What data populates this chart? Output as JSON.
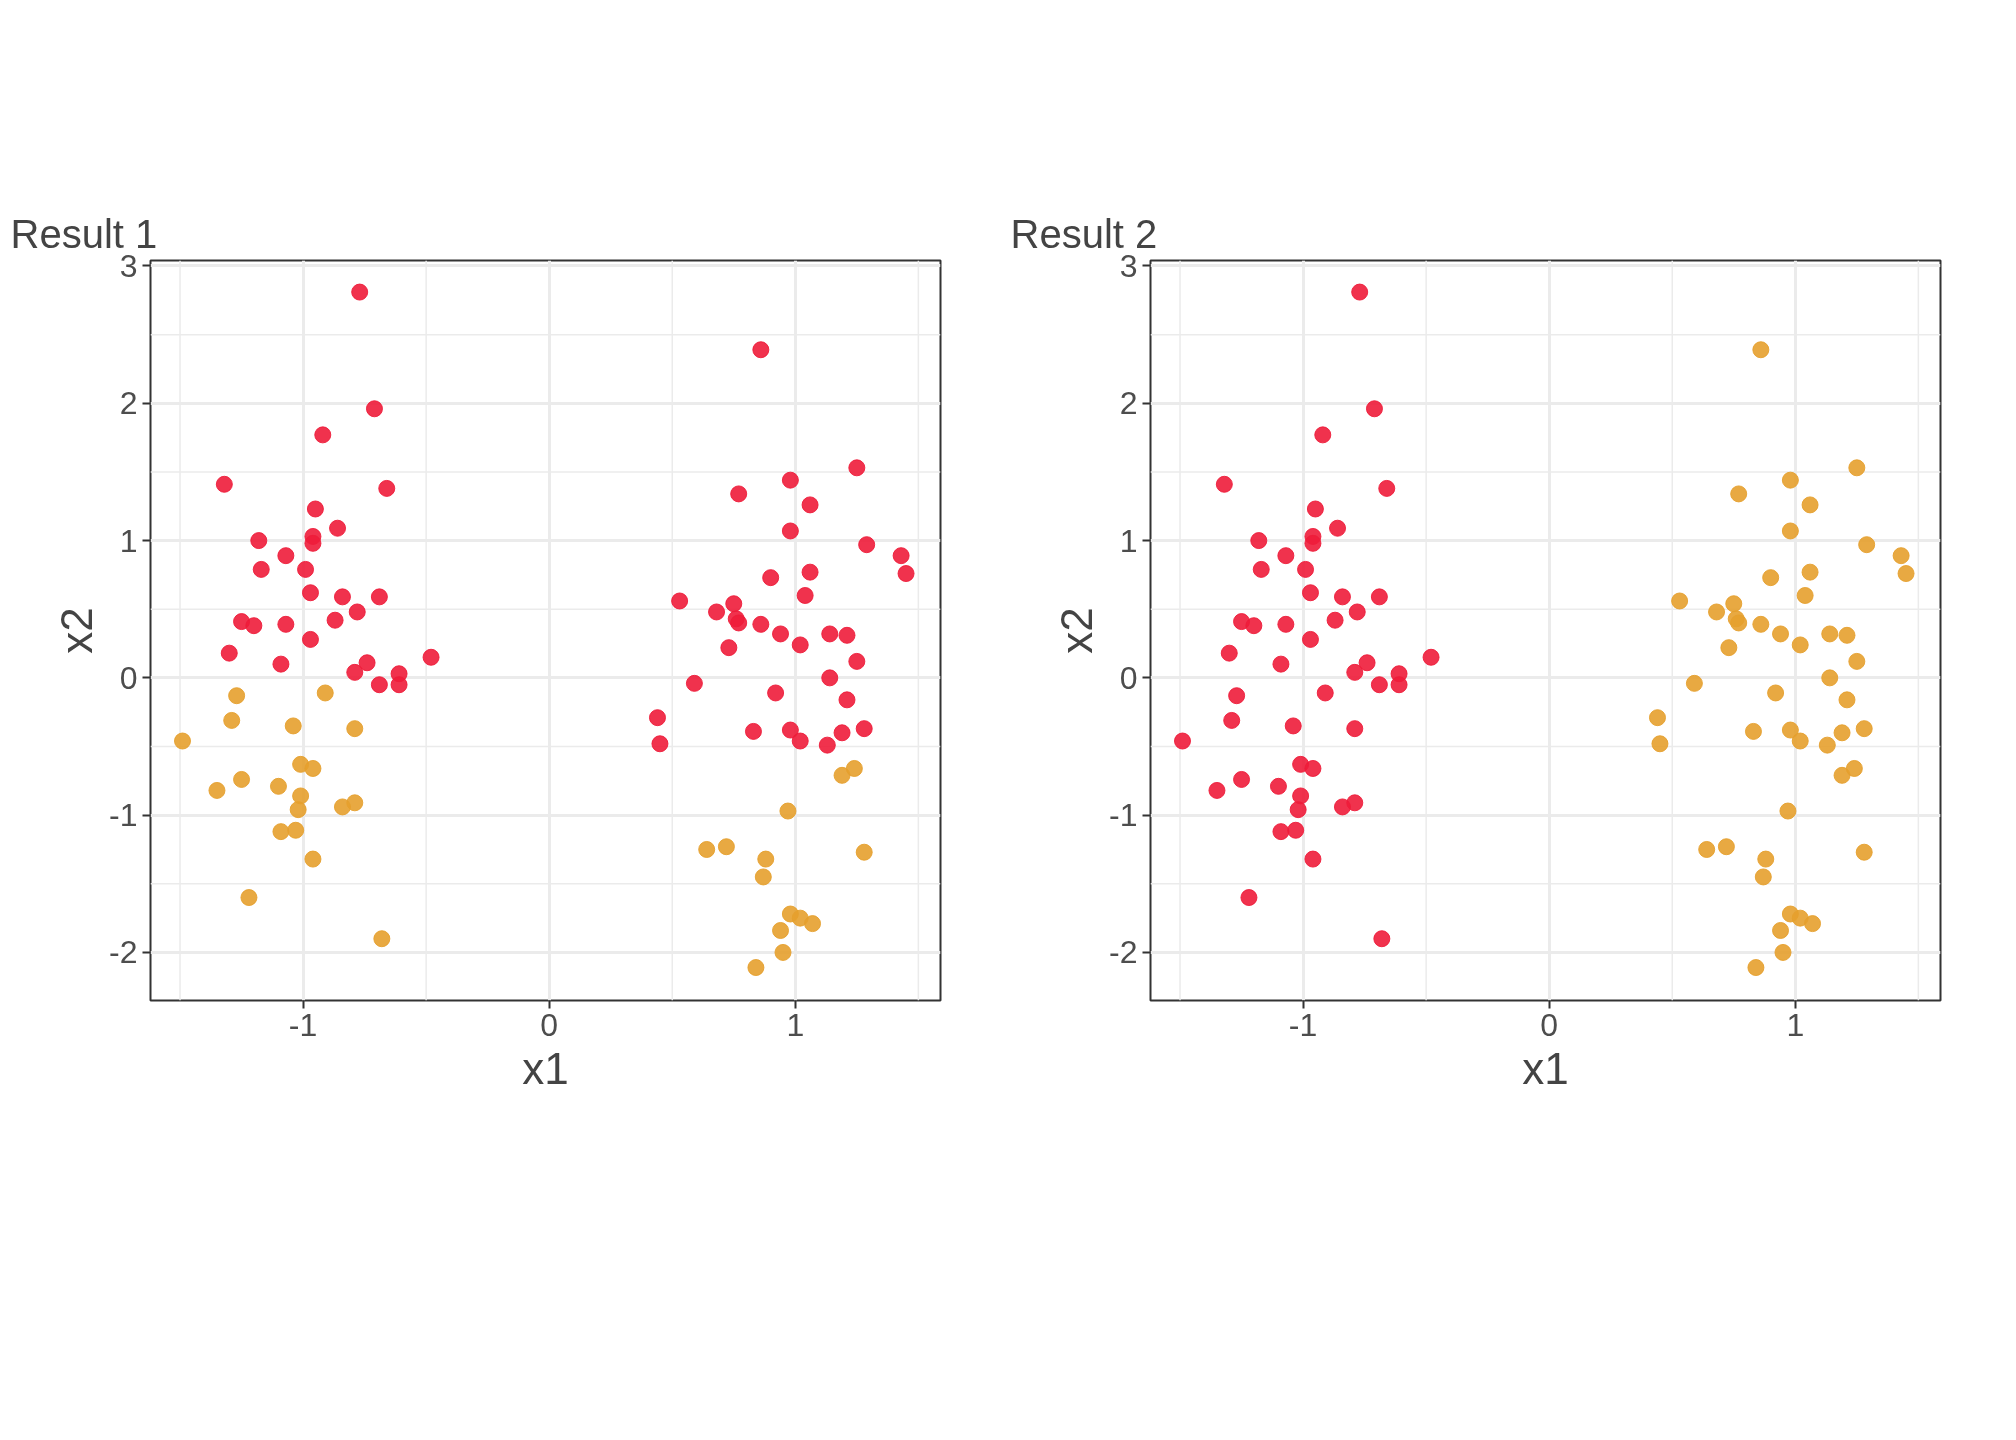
{
  "chart_data": [
    {
      "type": "scatter",
      "title": "Result 1",
      "xlabel": "x1",
      "ylabel": "x2",
      "xlim": [
        -1.62,
        1.59
      ],
      "ylim": [
        -2.35,
        3.04
      ],
      "xticks": [
        -1,
        0,
        1
      ],
      "yticks": [
        -2,
        -1,
        0,
        1,
        2,
        3
      ],
      "grid": true,
      "marker": "circle",
      "series": [
        {
          "color": "#ee1c3a",
          "x": [
            -0.77,
            -0.71,
            -0.92,
            -1.32,
            -0.66,
            -0.95,
            -0.86,
            -1.18,
            -0.96,
            -0.96,
            -1.07,
            -1.17,
            -0.99,
            -0.97,
            -0.84,
            -0.69,
            -0.78,
            -0.87,
            -1.25,
            -1.07,
            -1.2,
            -0.97,
            -1.3,
            -0.48,
            -1.09,
            -0.74,
            -0.79,
            -0.61,
            -0.69,
            -0.61,
            0.86,
            1.25,
            0.98,
            0.77,
            1.06,
            0.98,
            1.29,
            1.43,
            1.45,
            1.06,
            0.9,
            1.04,
            0.53,
            0.75,
            0.68,
            0.76,
            0.77,
            0.86,
            0.94,
            1.14,
            1.21,
            1.02,
            0.73,
            1.25,
            1.14,
            0.59,
            0.92,
            1.21,
            0.44,
            0.83,
            0.98,
            1.19,
            1.28,
            1.02,
            1.13,
            0.45
          ],
          "values": [
            2.81,
            1.96,
            1.77,
            1.41,
            1.38,
            1.23,
            1.09,
            1.0,
            1.03,
            0.98,
            0.89,
            0.79,
            0.79,
            0.62,
            0.59,
            0.59,
            0.48,
            0.42,
            0.41,
            0.39,
            0.38,
            0.28,
            0.18,
            0.15,
            0.1,
            0.11,
            0.04,
            0.03,
            -0.05,
            -0.05,
            2.39,
            1.53,
            1.44,
            1.34,
            1.26,
            1.07,
            0.97,
            0.89,
            0.76,
            0.77,
            0.73,
            0.6,
            0.56,
            0.54,
            0.48,
            0.43,
            0.4,
            0.39,
            0.32,
            0.32,
            0.31,
            0.24,
            0.22,
            0.12,
            0.0,
            -0.04,
            -0.11,
            -0.16,
            -0.29,
            -0.39,
            -0.38,
            -0.4,
            -0.37,
            -0.46,
            -0.49,
            -0.48
          ]
        },
        {
          "color": "#e6a02e",
          "x": [
            -0.91,
            -1.27,
            -1.49,
            -1.29,
            -1.04,
            -0.79,
            -1.01,
            -0.96,
            -1.25,
            -1.35,
            -1.1,
            -1.01,
            -0.79,
            -0.84,
            -1.02,
            -1.09,
            -1.03,
            -0.96,
            -1.22,
            -0.68,
            1.19,
            1.24,
            0.97,
            0.64,
            0.72,
            1.28,
            0.88,
            0.87,
            0.98,
            1.02,
            1.07,
            0.94,
            0.95,
            0.84
          ],
          "values": [
            -0.11,
            -0.13,
            -0.46,
            -0.31,
            -0.35,
            -0.37,
            -0.63,
            -0.66,
            -0.74,
            -0.82,
            -0.79,
            -0.86,
            -0.91,
            -0.94,
            -0.96,
            -1.12,
            -1.11,
            -1.32,
            -1.6,
            -1.9,
            -0.71,
            -0.66,
            -0.97,
            -1.25,
            -1.23,
            -1.27,
            -1.32,
            -1.45,
            -1.72,
            -1.75,
            -1.79,
            -1.84,
            -2.0,
            -2.11
          ]
        }
      ]
    },
    {
      "type": "scatter",
      "title": "Result 2",
      "xlabel": "x1",
      "ylabel": "x2",
      "xlim": [
        -1.62,
        1.59
      ],
      "ylim": [
        -2.35,
        3.04
      ],
      "xticks": [
        -1,
        0,
        1
      ],
      "yticks": [
        -2,
        -1,
        0,
        1,
        2,
        3
      ],
      "grid": true,
      "marker": "circle",
      "series": [
        {
          "color": "#ee1c3a",
          "x": [
            -0.77,
            -0.71,
            -0.92,
            -1.32,
            -0.66,
            -0.95,
            -0.86,
            -1.18,
            -0.96,
            -0.96,
            -1.07,
            -1.17,
            -0.99,
            -0.97,
            -0.84,
            -0.69,
            -0.78,
            -0.87,
            -1.25,
            -1.07,
            -1.2,
            -0.97,
            -1.3,
            -0.48,
            -1.09,
            -0.74,
            -0.79,
            -0.61,
            -0.69,
            -0.61,
            -0.91,
            -1.27,
            -1.49,
            -1.29,
            -1.04,
            -0.79,
            -1.01,
            -0.96,
            -1.25,
            -1.35,
            -1.1,
            -1.01,
            -0.79,
            -0.84,
            -1.02,
            -1.09,
            -1.03,
            -0.96,
            -1.22,
            -0.68
          ],
          "values": [
            2.81,
            1.96,
            1.77,
            1.41,
            1.38,
            1.23,
            1.09,
            1.0,
            1.03,
            0.98,
            0.89,
            0.79,
            0.79,
            0.62,
            0.59,
            0.59,
            0.48,
            0.42,
            0.41,
            0.39,
            0.38,
            0.28,
            0.18,
            0.15,
            0.1,
            0.11,
            0.04,
            0.03,
            -0.05,
            -0.05,
            -0.11,
            -0.13,
            -0.46,
            -0.31,
            -0.35,
            -0.37,
            -0.63,
            -0.66,
            -0.74,
            -0.82,
            -0.79,
            -0.86,
            -0.91,
            -0.94,
            -0.96,
            -1.12,
            -1.11,
            -1.32,
            -1.6,
            -1.9
          ]
        },
        {
          "color": "#e6a02e",
          "x": [
            0.86,
            1.25,
            0.98,
            0.77,
            1.06,
            0.98,
            1.29,
            1.43,
            1.45,
            1.06,
            0.9,
            1.04,
            0.53,
            0.75,
            0.68,
            0.76,
            0.77,
            0.86,
            0.94,
            1.14,
            1.21,
            1.02,
            0.73,
            1.25,
            1.14,
            0.59,
            0.92,
            1.21,
            0.44,
            0.83,
            0.98,
            1.19,
            1.28,
            1.02,
            1.13,
            0.45,
            1.19,
            1.24,
            0.97,
            0.64,
            0.72,
            1.28,
            0.88,
            0.87,
            0.98,
            1.02,
            1.07,
            0.94,
            0.95,
            0.84
          ],
          "values": [
            2.39,
            1.53,
            1.44,
            1.34,
            1.26,
            1.07,
            0.97,
            0.89,
            0.76,
            0.77,
            0.73,
            0.6,
            0.56,
            0.54,
            0.48,
            0.43,
            0.4,
            0.39,
            0.32,
            0.32,
            0.31,
            0.24,
            0.22,
            0.12,
            0.0,
            -0.04,
            -0.11,
            -0.16,
            -0.29,
            -0.39,
            -0.38,
            -0.4,
            -0.37,
            -0.46,
            -0.49,
            -0.48,
            -0.71,
            -0.66,
            -0.97,
            -1.25,
            -1.23,
            -1.27,
            -1.32,
            -1.45,
            -1.72,
            -1.75,
            -1.79,
            -1.84,
            -2.0,
            -2.11
          ]
        }
      ]
    }
  ]
}
